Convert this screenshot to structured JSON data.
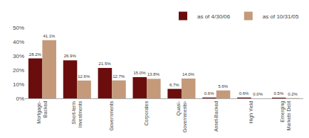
{
  "chart_data": {
    "type": "bar",
    "categories": [
      "Mortgage-\nBacked",
      "Short-term\nInvestments",
      "Governments",
      "Corporates",
      "Quasi-\nGovernments¹",
      "Asset-Backed",
      "High Yield",
      "Emerging\nMarkets Debt"
    ],
    "series": [
      {
        "name": "as of 4/30/06",
        "color": "#6b0d0d",
        "values": [
          28.2,
          26.9,
          21.5,
          15.0,
          6.7,
          0.6,
          0.6,
          0.5
        ],
        "value_labels": [
          "28.2%",
          "26.9%",
          "21.5%",
          "15.0%",
          "6.7%",
          "0.6%",
          "0.6%",
          "0.5%"
        ]
      },
      {
        "name": "as of 10/31/05",
        "color": "#c49a7a",
        "values": [
          41.1,
          12.6,
          12.7,
          13.8,
          14.0,
          5.6,
          0.0,
          0.2
        ],
        "value_labels": [
          "41.1%",
          "12.6%",
          "12.7%",
          "13.8%",
          "14.0%",
          "5.6%",
          "0.0%",
          "0.2%"
        ]
      }
    ],
    "ylim": [
      0,
      50
    ],
    "yticks": [
      {
        "value": 0,
        "label": "0%"
      },
      {
        "value": 10,
        "label": "10%"
      },
      {
        "value": 20,
        "label": "20%"
      },
      {
        "value": 30,
        "label": "30%"
      },
      {
        "value": 40,
        "label": "40%"
      },
      {
        "value": 50,
        "label": "50%"
      }
    ],
    "grid": false,
    "legend": "upper right",
    "data_labels": true
  }
}
